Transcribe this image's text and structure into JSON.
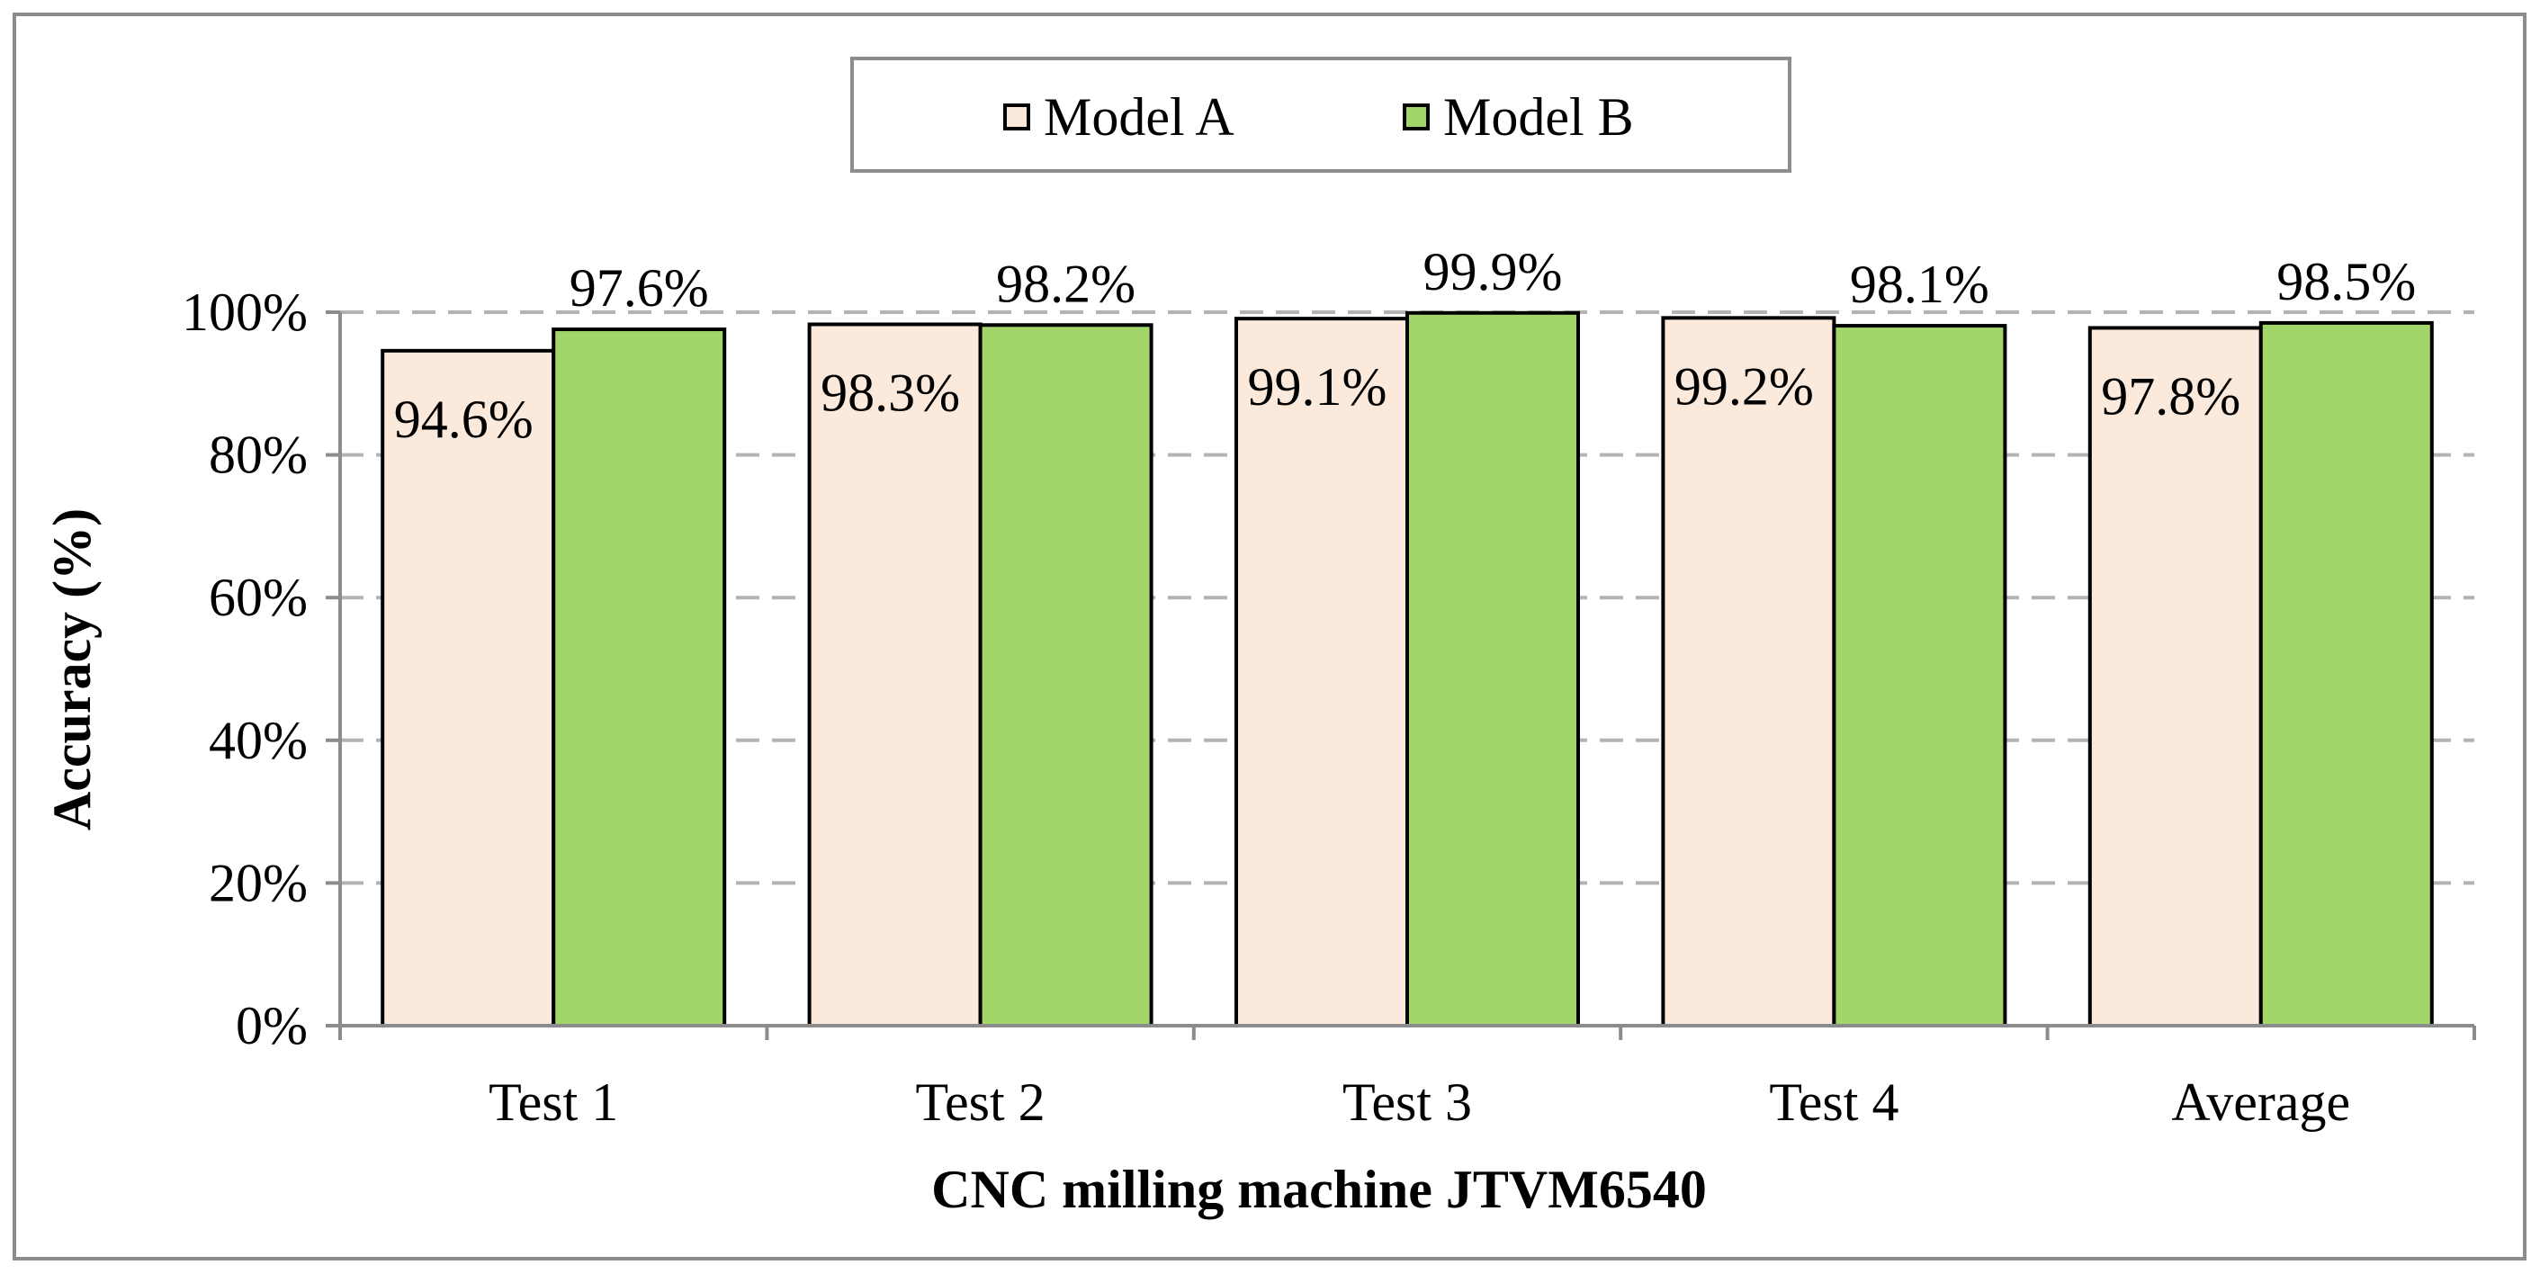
{
  "chart_data": {
    "type": "bar",
    "categories": [
      "Test 1",
      "Test 2",
      "Test 3",
      "Test 4",
      "Average"
    ],
    "series": [
      {
        "name": "Model A",
        "values": [
          94.6,
          98.3,
          99.1,
          99.2,
          97.8
        ],
        "labels": [
          "94.6%",
          "98.3%",
          "99.1%",
          "99.2%",
          "97.8%"
        ]
      },
      {
        "name": "Model B",
        "values": [
          97.6,
          98.2,
          99.9,
          98.1,
          98.5
        ],
        "labels": [
          "97.6%",
          "98.2%",
          "99.9%",
          "98.1%",
          "98.5%"
        ]
      }
    ],
    "xlabel": "CNC milling machine JTVM6540",
    "ylabel": "Accuracy (%)",
    "ylim": [
      0,
      100
    ],
    "yticks": [
      0,
      20,
      40,
      60,
      80,
      100
    ],
    "ytick_labels": [
      "0%",
      "20%",
      "40%",
      "60%",
      "80%",
      "100%"
    ],
    "grid": true,
    "legend_position": "top-center",
    "colors": {
      "Model A": "#fbeadc",
      "Model B": "#a2d66b",
      "outline": "#000000",
      "grid": "#b3b3b3",
      "frame": "#8c8c8c"
    }
  }
}
